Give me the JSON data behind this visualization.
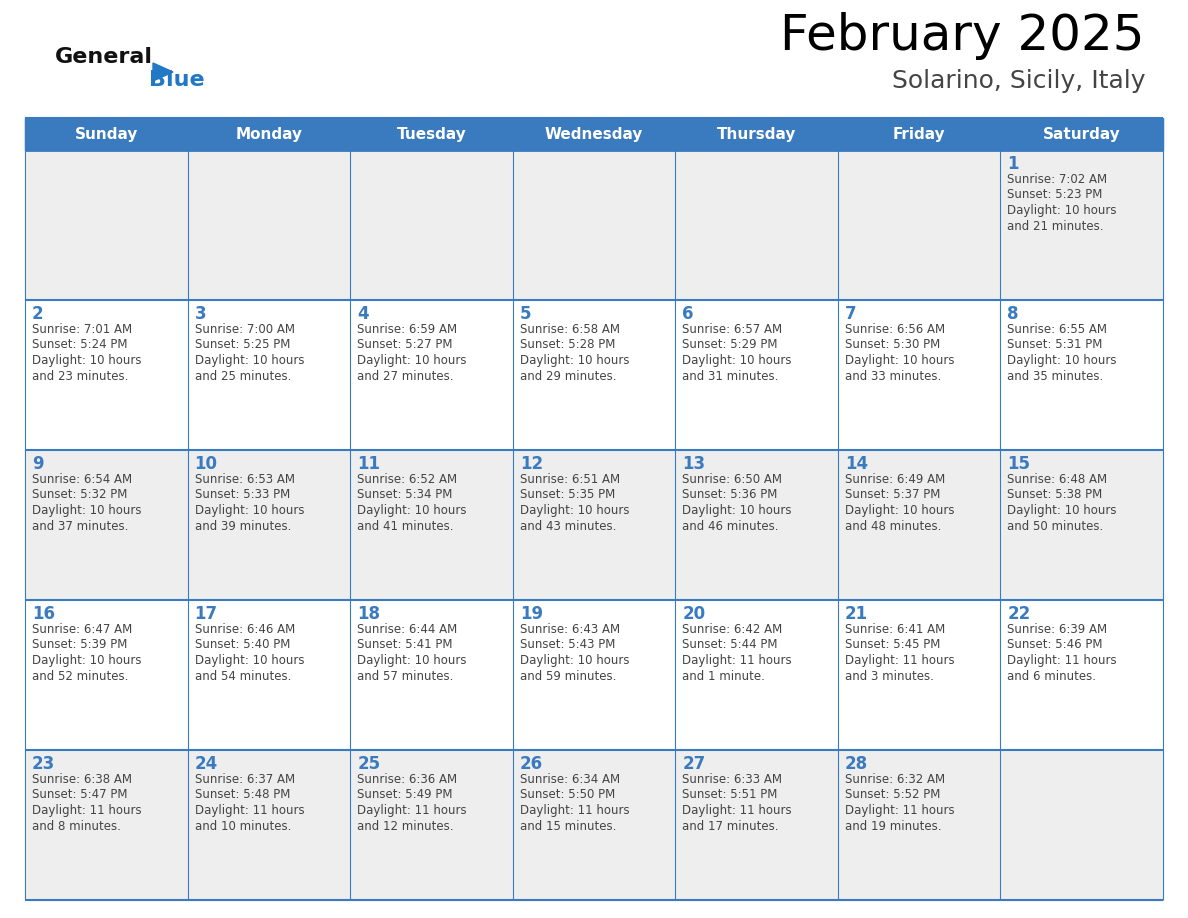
{
  "title": "February 2025",
  "subtitle": "Solarino, Sicily, Italy",
  "days_of_week": [
    "Sunday",
    "Monday",
    "Tuesday",
    "Wednesday",
    "Thursday",
    "Friday",
    "Saturday"
  ],
  "header_bg_color": "#3a7abf",
  "header_text_color": "#ffffff",
  "cell_bg_light": "#eeeeee",
  "cell_bg_white": "#ffffff",
  "day_num_color": "#3a7abf",
  "text_color": "#444444",
  "grid_color": "#3a7abf",
  "title_color": "#000000",
  "subtitle_color": "#444444",
  "logo_general_color": "#111111",
  "logo_blue_color": "#2178c4",
  "weeks": [
    [
      {
        "day": null,
        "sunrise": null,
        "sunset": null,
        "daylight": null
      },
      {
        "day": null,
        "sunrise": null,
        "sunset": null,
        "daylight": null
      },
      {
        "day": null,
        "sunrise": null,
        "sunset": null,
        "daylight": null
      },
      {
        "day": null,
        "sunrise": null,
        "sunset": null,
        "daylight": null
      },
      {
        "day": null,
        "sunrise": null,
        "sunset": null,
        "daylight": null
      },
      {
        "day": null,
        "sunrise": null,
        "sunset": null,
        "daylight": null
      },
      {
        "day": 1,
        "sunrise": "7:02 AM",
        "sunset": "5:23 PM",
        "daylight_line1": "Daylight: 10 hours",
        "daylight_line2": "and 21 minutes."
      }
    ],
    [
      {
        "day": 2,
        "sunrise": "7:01 AM",
        "sunset": "5:24 PM",
        "daylight_line1": "Daylight: 10 hours",
        "daylight_line2": "and 23 minutes."
      },
      {
        "day": 3,
        "sunrise": "7:00 AM",
        "sunset": "5:25 PM",
        "daylight_line1": "Daylight: 10 hours",
        "daylight_line2": "and 25 minutes."
      },
      {
        "day": 4,
        "sunrise": "6:59 AM",
        "sunset": "5:27 PM",
        "daylight_line1": "Daylight: 10 hours",
        "daylight_line2": "and 27 minutes."
      },
      {
        "day": 5,
        "sunrise": "6:58 AM",
        "sunset": "5:28 PM",
        "daylight_line1": "Daylight: 10 hours",
        "daylight_line2": "and 29 minutes."
      },
      {
        "day": 6,
        "sunrise": "6:57 AM",
        "sunset": "5:29 PM",
        "daylight_line1": "Daylight: 10 hours",
        "daylight_line2": "and 31 minutes."
      },
      {
        "day": 7,
        "sunrise": "6:56 AM",
        "sunset": "5:30 PM",
        "daylight_line1": "Daylight: 10 hours",
        "daylight_line2": "and 33 minutes."
      },
      {
        "day": 8,
        "sunrise": "6:55 AM",
        "sunset": "5:31 PM",
        "daylight_line1": "Daylight: 10 hours",
        "daylight_line2": "and 35 minutes."
      }
    ],
    [
      {
        "day": 9,
        "sunrise": "6:54 AM",
        "sunset": "5:32 PM",
        "daylight_line1": "Daylight: 10 hours",
        "daylight_line2": "and 37 minutes."
      },
      {
        "day": 10,
        "sunrise": "6:53 AM",
        "sunset": "5:33 PM",
        "daylight_line1": "Daylight: 10 hours",
        "daylight_line2": "and 39 minutes."
      },
      {
        "day": 11,
        "sunrise": "6:52 AM",
        "sunset": "5:34 PM",
        "daylight_line1": "Daylight: 10 hours",
        "daylight_line2": "and 41 minutes."
      },
      {
        "day": 12,
        "sunrise": "6:51 AM",
        "sunset": "5:35 PM",
        "daylight_line1": "Daylight: 10 hours",
        "daylight_line2": "and 43 minutes."
      },
      {
        "day": 13,
        "sunrise": "6:50 AM",
        "sunset": "5:36 PM",
        "daylight_line1": "Daylight: 10 hours",
        "daylight_line2": "and 46 minutes."
      },
      {
        "day": 14,
        "sunrise": "6:49 AM",
        "sunset": "5:37 PM",
        "daylight_line1": "Daylight: 10 hours",
        "daylight_line2": "and 48 minutes."
      },
      {
        "day": 15,
        "sunrise": "6:48 AM",
        "sunset": "5:38 PM",
        "daylight_line1": "Daylight: 10 hours",
        "daylight_line2": "and 50 minutes."
      }
    ],
    [
      {
        "day": 16,
        "sunrise": "6:47 AM",
        "sunset": "5:39 PM",
        "daylight_line1": "Daylight: 10 hours",
        "daylight_line2": "and 52 minutes."
      },
      {
        "day": 17,
        "sunrise": "6:46 AM",
        "sunset": "5:40 PM",
        "daylight_line1": "Daylight: 10 hours",
        "daylight_line2": "and 54 minutes."
      },
      {
        "day": 18,
        "sunrise": "6:44 AM",
        "sunset": "5:41 PM",
        "daylight_line1": "Daylight: 10 hours",
        "daylight_line2": "and 57 minutes."
      },
      {
        "day": 19,
        "sunrise": "6:43 AM",
        "sunset": "5:43 PM",
        "daylight_line1": "Daylight: 10 hours",
        "daylight_line2": "and 59 minutes."
      },
      {
        "day": 20,
        "sunrise": "6:42 AM",
        "sunset": "5:44 PM",
        "daylight_line1": "Daylight: 11 hours",
        "daylight_line2": "and 1 minute."
      },
      {
        "day": 21,
        "sunrise": "6:41 AM",
        "sunset": "5:45 PM",
        "daylight_line1": "Daylight: 11 hours",
        "daylight_line2": "and 3 minutes."
      },
      {
        "day": 22,
        "sunrise": "6:39 AM",
        "sunset": "5:46 PM",
        "daylight_line1": "Daylight: 11 hours",
        "daylight_line2": "and 6 minutes."
      }
    ],
    [
      {
        "day": 23,
        "sunrise": "6:38 AM",
        "sunset": "5:47 PM",
        "daylight_line1": "Daylight: 11 hours",
        "daylight_line2": "and 8 minutes."
      },
      {
        "day": 24,
        "sunrise": "6:37 AM",
        "sunset": "5:48 PM",
        "daylight_line1": "Daylight: 11 hours",
        "daylight_line2": "and 10 minutes."
      },
      {
        "day": 25,
        "sunrise": "6:36 AM",
        "sunset": "5:49 PM",
        "daylight_line1": "Daylight: 11 hours",
        "daylight_line2": "and 12 minutes."
      },
      {
        "day": 26,
        "sunrise": "6:34 AM",
        "sunset": "5:50 PM",
        "daylight_line1": "Daylight: 11 hours",
        "daylight_line2": "and 15 minutes."
      },
      {
        "day": 27,
        "sunrise": "6:33 AM",
        "sunset": "5:51 PM",
        "daylight_line1": "Daylight: 11 hours",
        "daylight_line2": "and 17 minutes."
      },
      {
        "day": 28,
        "sunrise": "6:32 AM",
        "sunset": "5:52 PM",
        "daylight_line1": "Daylight: 11 hours",
        "daylight_line2": "and 19 minutes."
      },
      {
        "day": null,
        "sunrise": null,
        "sunset": null,
        "daylight_line1": null,
        "daylight_line2": null
      }
    ]
  ]
}
